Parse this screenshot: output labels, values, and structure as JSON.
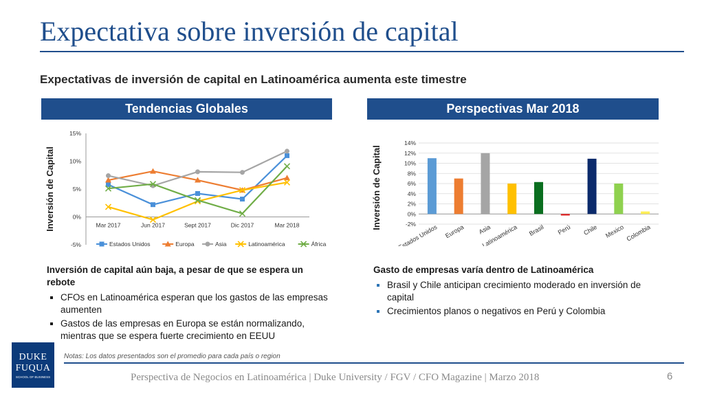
{
  "slide": {
    "title": "Expectativa sobre inversión de capital",
    "subtitle": "Expectativas de inversión de capital en Latinoamérica aumenta este timestre",
    "left_band": "Tendencias Globales",
    "right_band": "Perspectivas Mar 2018"
  },
  "chart_data": [
    {
      "type": "line",
      "ylabel": "Inversión de Capital",
      "categories": [
        "Mar 2017",
        "Jun 2017",
        "Sept 2017",
        "Dic 2017",
        "Mar 2018"
      ],
      "ylim": [
        -5,
        15
      ],
      "yticks": [
        "15%",
        "10%",
        "5%",
        "0%",
        "-5%"
      ],
      "legend_position": "bottom",
      "series": [
        {
          "name": "Estados Unidos",
          "color": "#4a90d9",
          "marker": "square",
          "values": [
            5.8,
            2.2,
            4.2,
            3.2,
            11.0
          ]
        },
        {
          "name": "Europa",
          "color": "#ed7d31",
          "marker": "triangle",
          "values": [
            6.6,
            8.2,
            6.6,
            4.8,
            7.0
          ]
        },
        {
          "name": "Asia",
          "color": "#a5a5a5",
          "marker": "circle",
          "values": [
            7.4,
            5.6,
            8.1,
            8.0,
            11.8
          ]
        },
        {
          "name": "Latinoamérica",
          "color": "#ffc000",
          "marker": "x",
          "values": [
            1.8,
            -0.5,
            2.8,
            4.8,
            6.2
          ]
        },
        {
          "name": "África",
          "color": "#70ad47",
          "marker": "x",
          "values": [
            5.1,
            5.9,
            3.0,
            0.6,
            9.1
          ]
        }
      ]
    },
    {
      "type": "bar",
      "ylabel": "Inversión de Capital",
      "categories": [
        "Estados Unidos",
        "Europa",
        "Asia",
        "Latinoamérica",
        "Brasil",
        "Perú",
        "Chile",
        "Mexico",
        "Colombia"
      ],
      "values": [
        11.0,
        7.0,
        12.0,
        6.0,
        6.3,
        -0.3,
        10.9,
        6.0,
        0.5
      ],
      "colors": [
        "#5b9bd5",
        "#ed7d31",
        "#a5a5a5",
        "#ffc000",
        "#0a6e1f",
        "#e02020",
        "#0b2a6b",
        "#8fd14f",
        "#ffee55"
      ],
      "ylim": [
        -2,
        14
      ],
      "yticks": [
        "14%",
        "12%",
        "10%",
        "8%",
        "6%",
        "4%",
        "2%",
        "0%",
        "-2%"
      ]
    }
  ],
  "left_text": {
    "heading": "Inversión de capital aún baja, a pesar de que se espera un rebote",
    "bullets": [
      "CFOs en Latinoamérica esperan que los gastos de las empresas aumenten",
      "Gastos de las empresas en Europa se están normalizando, mientras que se espera fuerte crecimiento en EEUU"
    ]
  },
  "right_text": {
    "heading": "Gasto de empresas varía dentro de Latinoamérica",
    "bullets": [
      "Brasil y Chile anticipan crecimiento moderado en inversión de capital",
      "Crecimientos planos o negativos en Perú y Colombia"
    ]
  },
  "logo": {
    "line1": "DUKE",
    "line2": "FUQUA",
    "line3": "SCHOOL OF BUSINESS"
  },
  "notes": "Notas:  Los datos presentados son el promedio para cada país o region",
  "footer": "Perspectiva de Negocios en Latinoamérica | Duke University / FGV / CFO Magazine | Marzo 2018",
  "page_number": "6"
}
